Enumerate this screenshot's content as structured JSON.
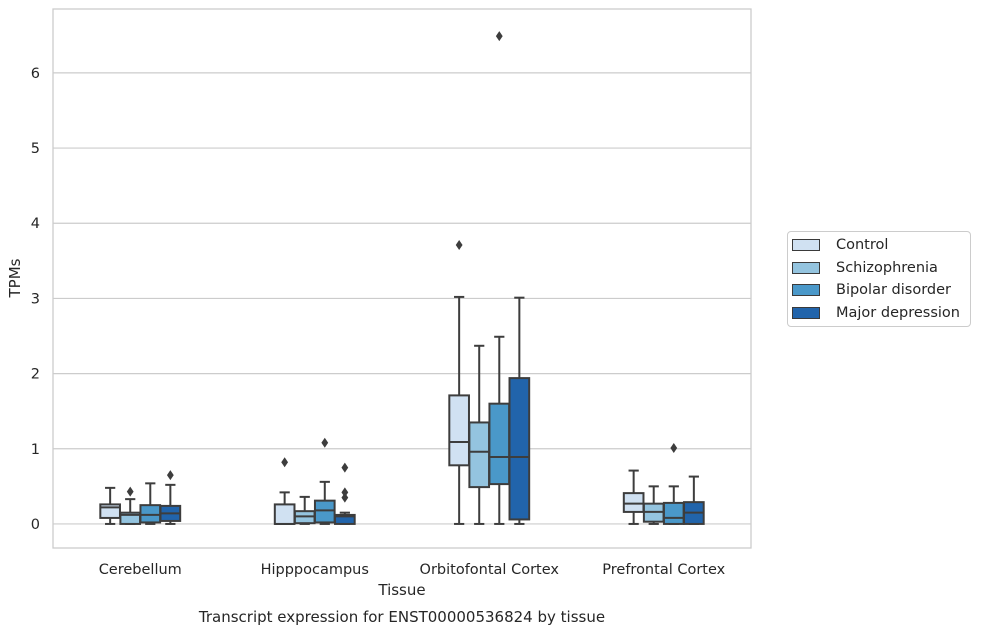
{
  "chart_data": {
    "type": "box",
    "title": "Transcript expression for ENST00000536824 by tissue",
    "xlabel": "Tissue",
    "ylabel": "TPMs",
    "ylim": [
      -0.32,
      6.85
    ],
    "yticks": [
      "0",
      "1",
      "2",
      "3",
      "4",
      "5",
      "6"
    ],
    "grid": "horizontal",
    "legend_position": "right",
    "categories": [
      "Cerebellum",
      "Hipppocampus",
      "Orbitofontal Cortex",
      "Prefrontal Cortex"
    ],
    "series": [
      {
        "name": "Control",
        "color": "#d0e1f2",
        "boxes": [
          {
            "whisker_low": 0.0,
            "q1": 0.08,
            "median": 0.22,
            "q3": 0.26,
            "whisker_high": 0.48,
            "outliers": []
          },
          {
            "whisker_low": 0.0,
            "q1": 0.0,
            "median": 0.0,
            "q3": 0.26,
            "whisker_high": 0.42,
            "outliers": [
              0.82
            ]
          },
          {
            "whisker_low": 0.0,
            "q1": 0.78,
            "median": 1.09,
            "q3": 1.71,
            "whisker_high": 3.02,
            "outliers": [
              3.71
            ]
          },
          {
            "whisker_low": 0.0,
            "q1": 0.16,
            "median": 0.27,
            "q3": 0.41,
            "whisker_high": 0.71,
            "outliers": []
          }
        ]
      },
      {
        "name": "Schizophrenia",
        "color": "#94c4df",
        "boxes": [
          {
            "whisker_low": 0.0,
            "q1": 0.0,
            "median": 0.12,
            "q3": 0.15,
            "whisker_high": 0.33,
            "outliers": [
              0.43
            ]
          },
          {
            "whisker_low": 0.0,
            "q1": 0.01,
            "median": 0.1,
            "q3": 0.17,
            "whisker_high": 0.36,
            "outliers": []
          },
          {
            "whisker_low": 0.0,
            "q1": 0.49,
            "median": 0.96,
            "q3": 1.35,
            "whisker_high": 2.37,
            "outliers": []
          },
          {
            "whisker_low": 0.0,
            "q1": 0.03,
            "median": 0.16,
            "q3": 0.27,
            "whisker_high": 0.5,
            "outliers": []
          }
        ]
      },
      {
        "name": "Bipolar disorder",
        "color": "#4a98c9",
        "boxes": [
          {
            "whisker_low": 0.0,
            "q1": 0.02,
            "median": 0.12,
            "q3": 0.25,
            "whisker_high": 0.54,
            "outliers": []
          },
          {
            "whisker_low": 0.0,
            "q1": 0.02,
            "median": 0.18,
            "q3": 0.31,
            "whisker_high": 0.56,
            "outliers": [
              1.08
            ]
          },
          {
            "whisker_low": 0.0,
            "q1": 0.53,
            "median": 0.89,
            "q3": 1.6,
            "whisker_high": 2.49,
            "outliers": [
              6.49
            ]
          },
          {
            "whisker_low": 0.0,
            "q1": 0.0,
            "median": 0.08,
            "q3": 0.28,
            "whisker_high": 0.5,
            "outliers": [
              1.01
            ]
          }
        ]
      },
      {
        "name": "Major depression",
        "color": "#2164ab",
        "boxes": [
          {
            "whisker_low": 0.0,
            "q1": 0.04,
            "median": 0.14,
            "q3": 0.24,
            "whisker_high": 0.52,
            "outliers": [
              0.65
            ]
          },
          {
            "whisker_low": 0.0,
            "q1": 0.0,
            "median": 0.1,
            "q3": 0.12,
            "whisker_high": 0.15,
            "outliers": [
              0.35,
              0.42,
              0.75
            ]
          },
          {
            "whisker_low": 0.0,
            "q1": 0.06,
            "median": 0.89,
            "q3": 1.94,
            "whisker_high": 3.01,
            "outliers": []
          },
          {
            "whisker_low": 0.0,
            "q1": 0.0,
            "median": 0.15,
            "q3": 0.29,
            "whisker_high": 0.63,
            "outliers": []
          }
        ]
      }
    ]
  }
}
